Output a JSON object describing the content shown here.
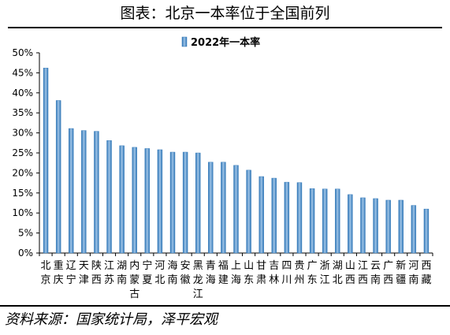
{
  "header": {
    "title": "图表：北京一本率位于全国前列"
  },
  "footer": {
    "source": "资料来源：国家统计局，泽平宏观"
  },
  "colors": {
    "bar_light": "#9dc3e6",
    "bar_dark": "#2e75b6",
    "axis": "#000000"
  },
  "chart_data": {
    "type": "bar",
    "legend": "2022年一本率",
    "legend_position": "top-center",
    "grid": false,
    "ylim": [
      0,
      50
    ],
    "y_ticks": [
      "0%",
      "5%",
      "10%",
      "15%",
      "20%",
      "25%",
      "30%",
      "35%",
      "40%",
      "45%",
      "50%"
    ],
    "categories": [
      "北京",
      "重庆",
      "辽宁",
      "天津",
      "陕西",
      "江苏",
      "湖南",
      "内蒙古",
      "宁夏",
      "河北",
      "海南",
      "安徽",
      "黑龙江",
      "青海",
      "福建",
      "上海",
      "山东",
      "甘肃",
      "吉林",
      "四川",
      "贵州",
      "广东",
      "浙江",
      "湖北",
      "山西",
      "江西",
      "云南",
      "广西",
      "新疆",
      "河南",
      "西藏"
    ],
    "values": [
      46.2,
      38.1,
      31.1,
      30.6,
      30.4,
      28.1,
      26.8,
      26.4,
      26.1,
      25.8,
      25.2,
      25.2,
      25.0,
      22.7,
      22.7,
      21.9,
      20.7,
      19.1,
      18.7,
      17.7,
      17.6,
      16.1,
      16.0,
      16.0,
      14.6,
      13.8,
      13.6,
      13.2,
      13.2,
      11.9,
      11.0
    ]
  }
}
